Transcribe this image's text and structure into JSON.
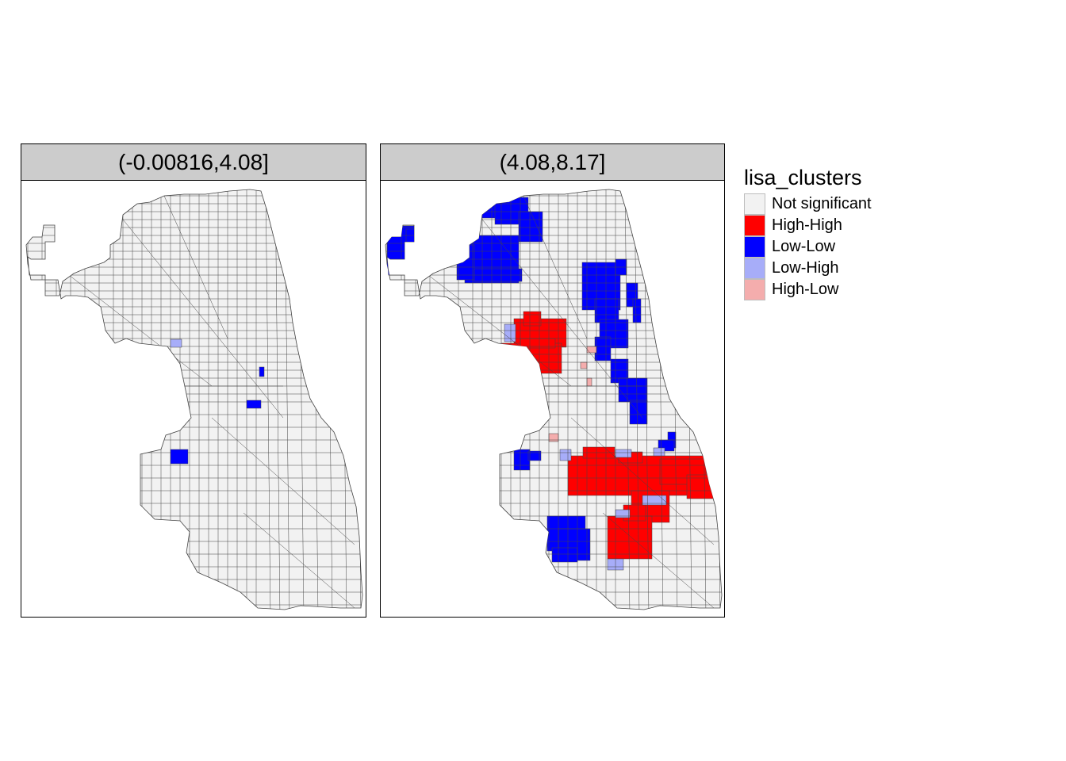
{
  "panels": [
    {
      "title": "(-0.00816,4.08]"
    },
    {
      "title": "(4.08,8.17]"
    }
  ],
  "legend": {
    "title": "lisa_clusters",
    "items": [
      {
        "label": "Not significant",
        "color": "#f2f2f2"
      },
      {
        "label": "High-High",
        "color": "#ff0000"
      },
      {
        "label": "Low-Low",
        "color": "#0000ff"
      },
      {
        "label": "Low-High",
        "color": "#a7adf9"
      },
      {
        "label": "High-Low",
        "color": "#f4adad"
      }
    ]
  },
  "colors": {
    "tract_fill": "#f2f2f2",
    "tract_border": "#444444",
    "header_bg": "#cccccc"
  }
}
